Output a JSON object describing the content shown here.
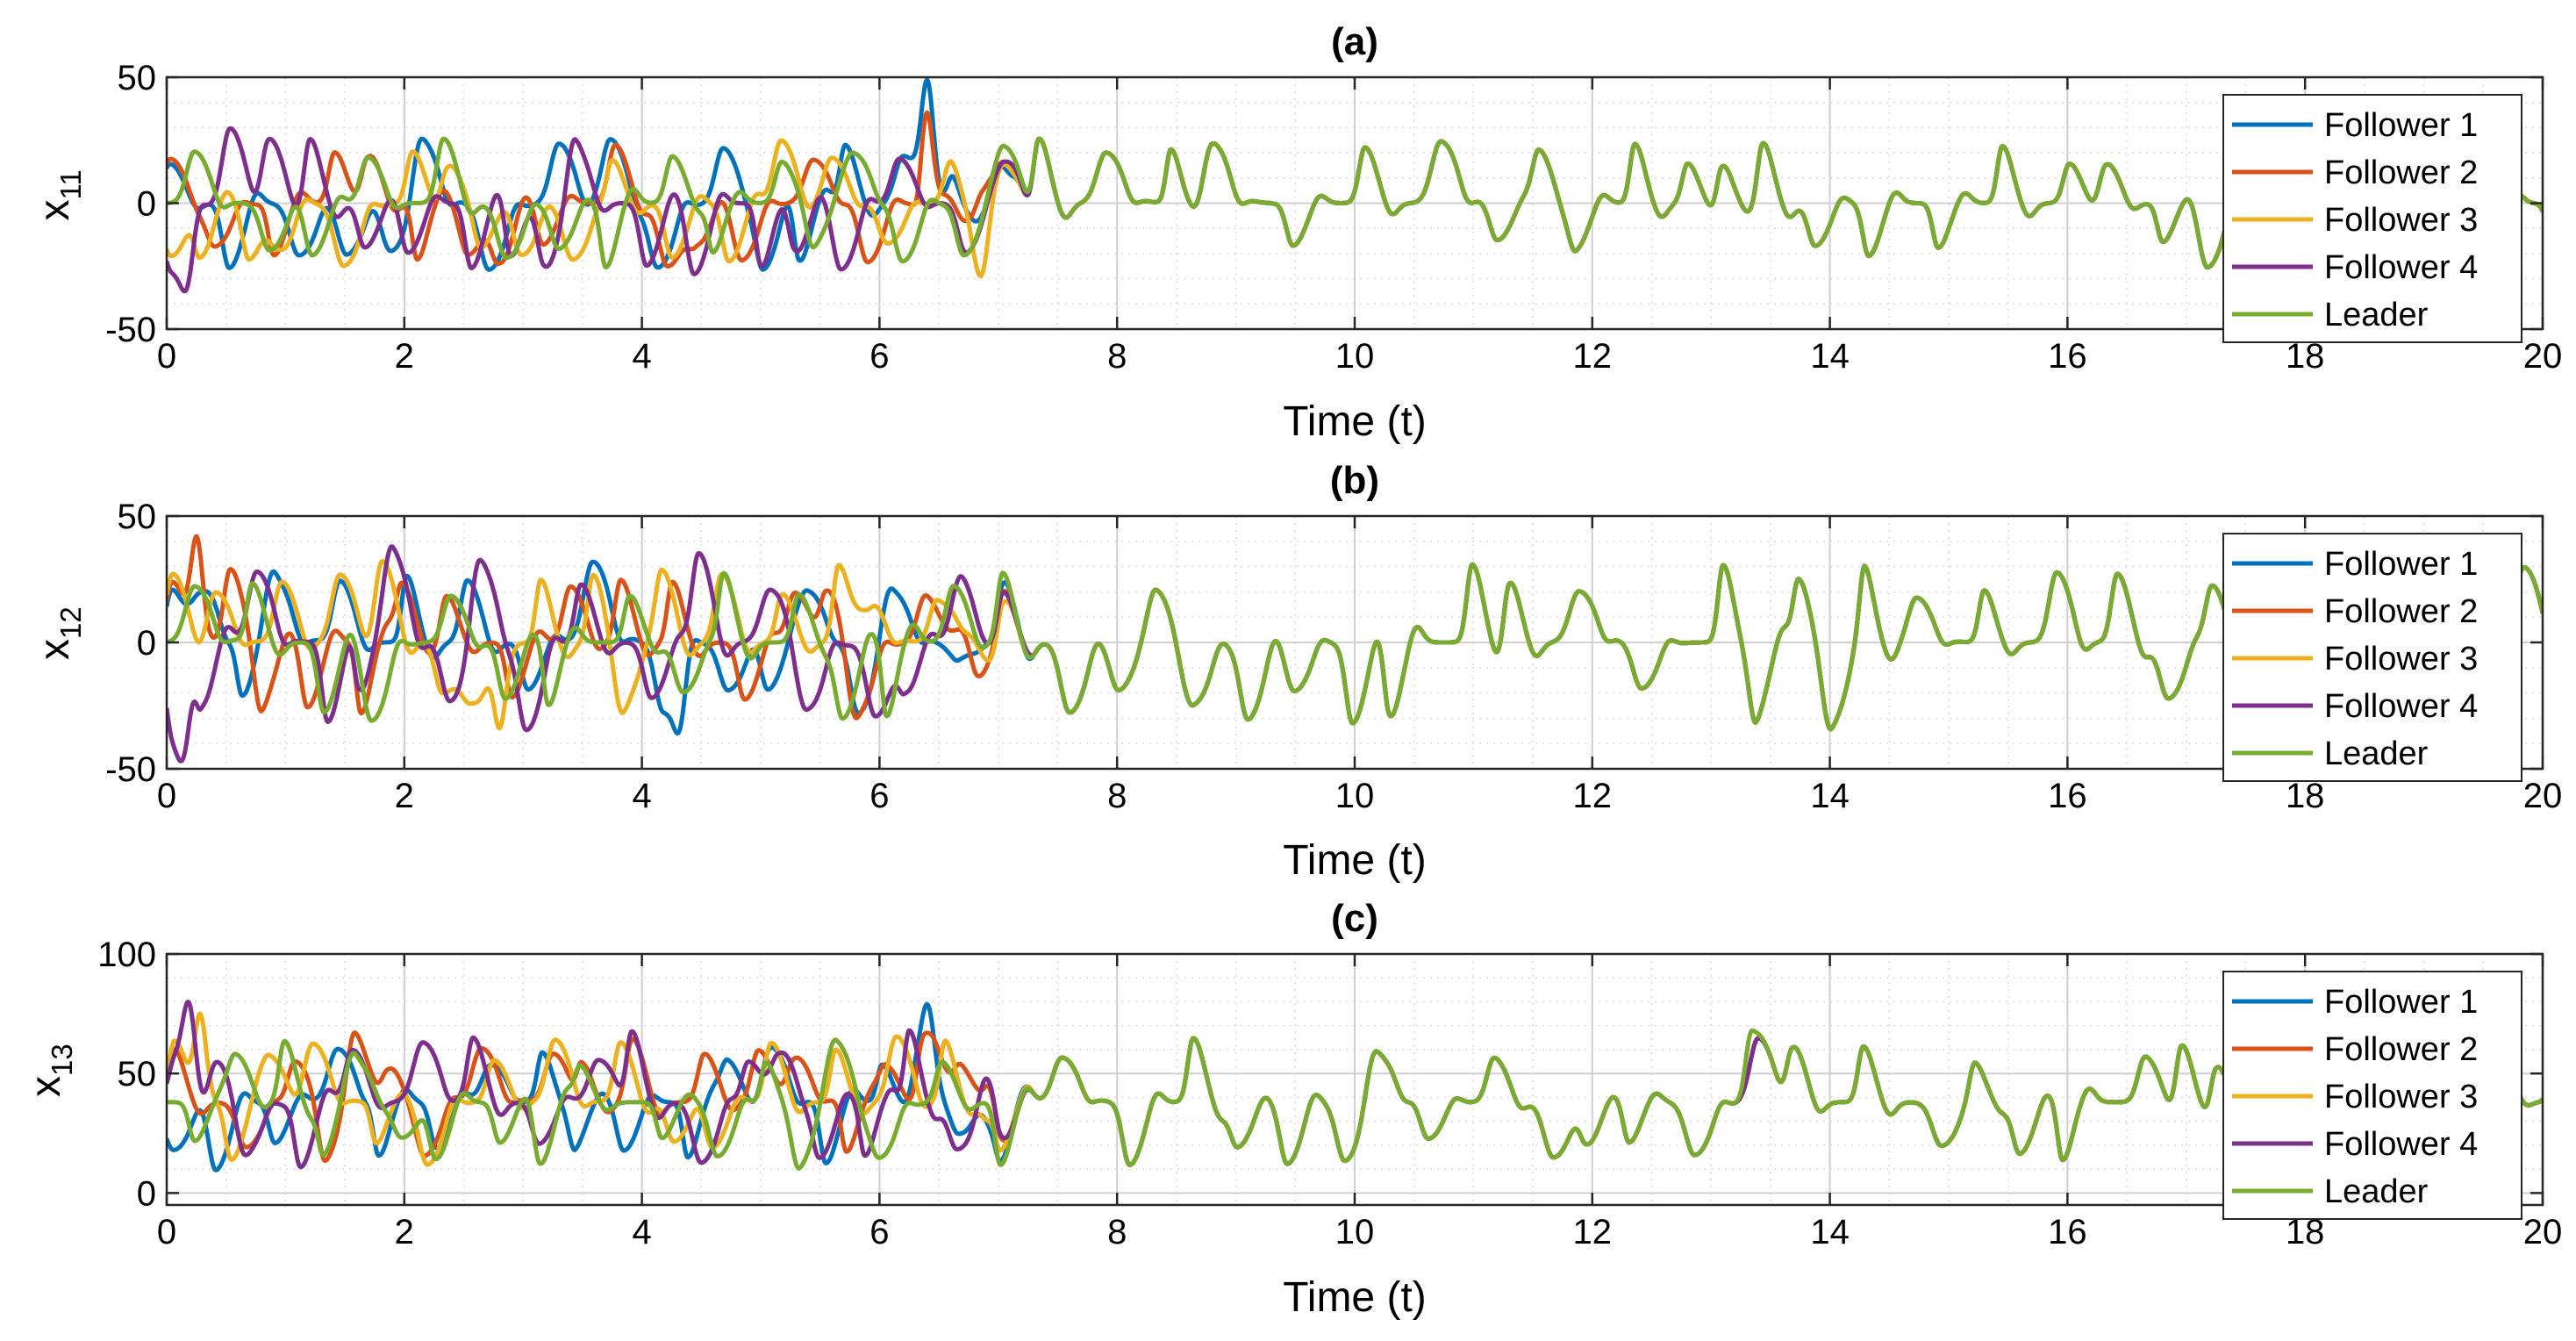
{
  "colors": {
    "follower1": "#0072BD",
    "follower2": "#D95319",
    "follower3": "#EDB120",
    "follower4": "#7E2F8E",
    "leader": "#77AC30",
    "grid": "#DCDCDC",
    "axes": "#262626"
  },
  "chart_data": [
    {
      "type": "line",
      "title": "(a)",
      "xlabel": "Time (t)",
      "ylabel_base": "x",
      "ylabel_sub": "11",
      "xlim": [
        0,
        20
      ],
      "ylim": [
        -50,
        50
      ],
      "xticks": [
        0,
        2,
        4,
        6,
        8,
        10,
        12,
        14,
        16,
        18,
        20
      ],
      "xtick_labels": [
        "0",
        "2",
        "4",
        "6",
        "8",
        "10",
        "12",
        "14",
        "16",
        "18",
        "20"
      ],
      "yticks": [
        -50,
        0,
        50
      ],
      "ytick_labels": [
        "-50",
        "0",
        "50"
      ],
      "grid": true,
      "legend_position": "top-right",
      "convergence_time": 7.3,
      "series": [
        {
          "name": "Follower 1",
          "color": "#0072BD",
          "amplitude": 27,
          "offset": 0,
          "peak_time": 6.4,
          "peak_value": 49
        },
        {
          "name": "Follower 2",
          "color": "#D95319",
          "amplitude": 26,
          "offset": 0,
          "peak_time": 6.4,
          "peak_value": 36
        },
        {
          "name": "Follower 3",
          "color": "#EDB120",
          "amplitude": 27,
          "offset": 0,
          "peak_time": 6.85,
          "peak_value": -29
        },
        {
          "name": "Follower 4",
          "color": "#7E2F8E",
          "amplitude": 30,
          "offset": 0,
          "peak_time": 0.15,
          "peak_value": -35
        },
        {
          "name": "Leader",
          "color": "#77AC30",
          "amplitude": 26,
          "offset": 0
        }
      ]
    },
    {
      "type": "line",
      "title": "(b)",
      "xlabel": "Time (t)",
      "ylabel_base": "x",
      "ylabel_sub": "12",
      "xlim": [
        0,
        20
      ],
      "ylim": [
        -50,
        50
      ],
      "xticks": [
        0,
        2,
        4,
        6,
        8,
        10,
        12,
        14,
        16,
        18,
        20
      ],
      "xtick_labels": [
        "0",
        "2",
        "4",
        "6",
        "8",
        "10",
        "12",
        "14",
        "16",
        "18",
        "20"
      ],
      "yticks": [
        -50,
        0,
        50
      ],
      "ytick_labels": [
        "-50",
        "0",
        "50"
      ],
      "grid": true,
      "legend_position": "top-right",
      "convergence_time": 7.3,
      "series": [
        {
          "name": "Follower 1",
          "color": "#0072BD",
          "amplitude": 32,
          "offset": 0,
          "peak_time": 4.3,
          "peak_value": -36
        },
        {
          "name": "Follower 2",
          "color": "#D95319",
          "amplitude": 32,
          "offset": 0,
          "peak_time": 0.25,
          "peak_value": 42
        },
        {
          "name": "Follower 3",
          "color": "#EDB120",
          "amplitude": 32,
          "offset": 0,
          "peak_time": 2.8,
          "peak_value": -34
        },
        {
          "name": "Follower 4",
          "color": "#7E2F8E",
          "amplitude": 36,
          "offset": 0,
          "peak_time": 0.12,
          "peak_value": -47
        },
        {
          "name": "Leader",
          "color": "#77AC30",
          "amplitude": 32,
          "offset": 0
        }
      ]
    },
    {
      "type": "line",
      "title": "(c)",
      "xlabel": "Time (t)",
      "ylabel_base": "x",
      "ylabel_sub": "13",
      "xlim": [
        0,
        20
      ],
      "ylim": [
        -5,
        100
      ],
      "xticks": [
        0,
        2,
        4,
        6,
        8,
        10,
        12,
        14,
        16,
        18,
        20
      ],
      "xtick_labels": [
        "0",
        "2",
        "4",
        "6",
        "8",
        "10",
        "12",
        "14",
        "16",
        "18",
        "20"
      ],
      "yticks": [
        0,
        50,
        100
      ],
      "ytick_labels": [
        "0",
        "50",
        "100"
      ],
      "grid": true,
      "legend_position": "top-right",
      "convergence_time": 7.3,
      "series": [
        {
          "name": "Follower 1",
          "color": "#0072BD",
          "amplitude": 28,
          "offset": 38,
          "peak_time": 6.4,
          "peak_value": 79
        },
        {
          "name": "Follower 2",
          "color": "#D95319",
          "amplitude": 27,
          "offset": 38,
          "peak_time": 6.4,
          "peak_value": 67
        },
        {
          "name": "Follower 3",
          "color": "#EDB120",
          "amplitude": 28,
          "offset": 38,
          "peak_time": 0.28,
          "peak_value": 75
        },
        {
          "name": "Follower 4",
          "color": "#7E2F8E",
          "amplitude": 30,
          "offset": 38,
          "peak_time": 0.18,
          "peak_value": 80
        },
        {
          "name": "Leader",
          "color": "#77AC30",
          "amplitude": 27,
          "offset": 38,
          "peak_time": 13.35,
          "peak_value": 68
        }
      ]
    }
  ]
}
